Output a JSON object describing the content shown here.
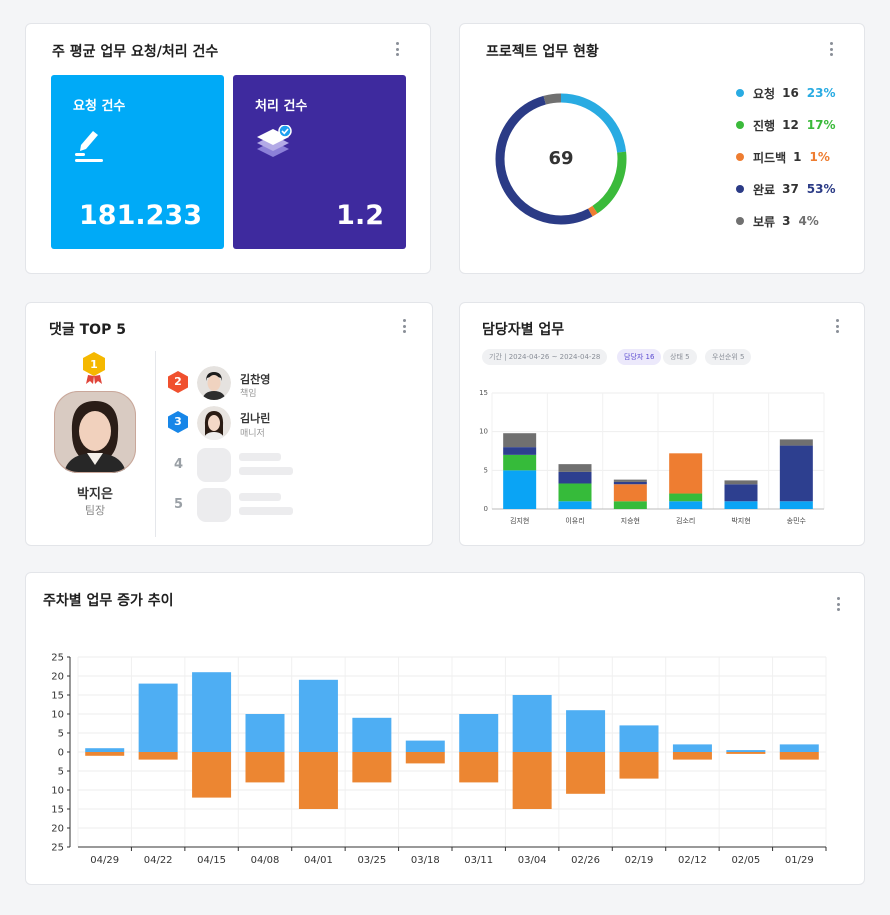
{
  "cards": {
    "weekly_avg": {
      "title": "주 평균 업무 요청/처리 건수",
      "request": {
        "label": "요청 건수",
        "value": "181.233",
        "color": "#00aaf7"
      },
      "processed": {
        "label": "처리 건수",
        "value": "1.2",
        "color": "#3e2a9e"
      }
    },
    "project_status": {
      "title": "프로젝트 업무 현황",
      "total": "69",
      "legend": [
        {
          "label": "요청",
          "count": "16",
          "percent": "23%",
          "color": "#29abe2"
        },
        {
          "label": "진행",
          "count": "12",
          "percent": "17%",
          "color": "#3bba3b"
        },
        {
          "label": "피드백",
          "count": "1",
          "percent": "1%",
          "color": "#ee7d31"
        },
        {
          "label": "완료",
          "count": "37",
          "percent": "53%",
          "color": "#2b3b86"
        },
        {
          "label": "보류",
          "count": "3",
          "percent": "4%",
          "color": "#707070"
        }
      ]
    },
    "comments_top5": {
      "title": "댓글 TOP 5",
      "first": {
        "rank": "1",
        "name": "박지은",
        "role": "팀장"
      },
      "others": [
        {
          "rank": "2",
          "name": "김찬영",
          "role": "책임"
        },
        {
          "rank": "3",
          "name": "김나린",
          "role": "매니저"
        },
        {
          "rank": "4"
        },
        {
          "rank": "5"
        }
      ]
    },
    "assignee_work": {
      "title": "담당자별 업무",
      "filters": [
        {
          "label": "기간 | 2024-04-26 ~ 2024-04-28",
          "active": false
        },
        {
          "label": "담당자 16",
          "active": true
        },
        {
          "label": "상태 5",
          "active": false
        },
        {
          "label": "우선순위 5",
          "active": false
        }
      ]
    },
    "weekly_trend": {
      "title": "주차별 업무 증가 추이"
    }
  },
  "chart_data": [
    {
      "type": "bar",
      "stacked": true,
      "categories": [
        "김지현",
        "이유리",
        "지승현",
        "김소리",
        "박지현",
        "송민수"
      ],
      "ylim": [
        0,
        15
      ],
      "yticks": [
        0,
        5,
        10,
        15
      ],
      "grid": true,
      "series": [
        {
          "color": "#0aa4f5",
          "values": [
            5,
            1,
            0,
            1,
            1,
            1
          ]
        },
        {
          "color": "#36bb3a",
          "values": [
            2,
            2.3,
            1,
            1,
            0,
            0
          ]
        },
        {
          "color": "#ee7d31",
          "values": [
            0,
            0,
            2.2,
            5.2,
            0,
            0
          ]
        },
        {
          "color": "#2d3f8f",
          "values": [
            1,
            1.5,
            0.3,
            0,
            2.2,
            7.2
          ]
        },
        {
          "color": "#707070",
          "values": [
            1.8,
            1,
            0.3,
            0,
            0.5,
            0.8
          ]
        }
      ]
    },
    {
      "type": "bar",
      "diverging": true,
      "categories": [
        "04/29",
        "04/22",
        "04/15",
        "04/08",
        "04/01",
        "03/25",
        "03/18",
        "03/11",
        "03/04",
        "02/26",
        "02/19",
        "02/12",
        "02/05",
        "01/29"
      ],
      "yticks": [
        "25",
        "20",
        "15",
        "10",
        "5",
        "0",
        "5",
        "10",
        "15",
        "20",
        "25"
      ],
      "ylim": [
        -25,
        25
      ],
      "grid": true,
      "series": [
        {
          "color": "#4eaef3",
          "values": [
            1,
            18,
            21,
            10,
            19,
            9,
            3,
            10,
            15,
            11,
            7,
            2,
            0.5,
            2
          ]
        },
        {
          "color": "#ec8632",
          "values": [
            -1,
            -2,
            -12,
            -8,
            -15,
            -8,
            -3,
            -8,
            -15,
            -11,
            -7,
            -2,
            -0.5,
            -2
          ]
        }
      ]
    }
  ]
}
